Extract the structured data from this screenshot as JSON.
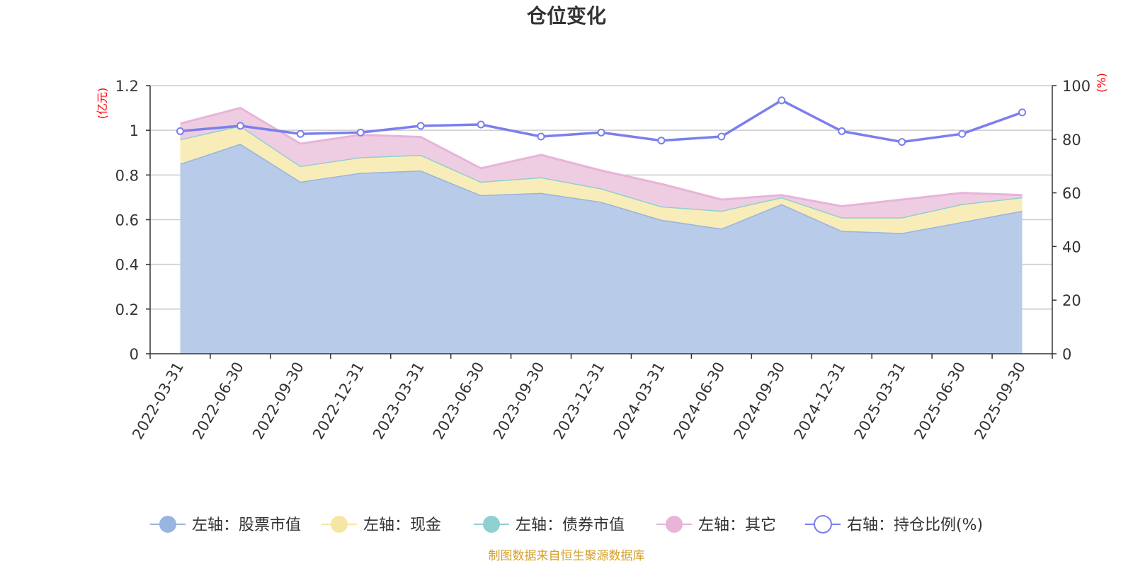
{
  "chart_data": {
    "type": "area",
    "title": "仓位变化",
    "left_axis_unit": "(亿元)",
    "right_axis_unit": "(%)",
    "left_ylim": [
      0,
      1.2
    ],
    "left_yticks": [
      "0",
      "0.2",
      "0.4",
      "0.6",
      "0.8",
      "1",
      "1.2"
    ],
    "right_ylim": [
      0,
      100
    ],
    "right_yticks": [
      "0",
      "20",
      "40",
      "60",
      "80",
      "100"
    ],
    "categories": [
      "2022-03-31",
      "2022-06-30",
      "2022-09-30",
      "2022-12-31",
      "2023-03-31",
      "2023-06-30",
      "2023-09-30",
      "2023-12-31",
      "2024-03-31",
      "2024-06-30",
      "2024-09-30",
      "2024-12-31",
      "2025-03-31",
      "2025-06-30",
      "2025-09-30"
    ],
    "series": [
      {
        "name": "左轴：股票市值",
        "axis": "left",
        "type": "area",
        "color": "#98b4e0",
        "fill": "#b8cbe9",
        "values": [
          0.85,
          0.94,
          0.77,
          0.81,
          0.82,
          0.71,
          0.72,
          0.68,
          0.6,
          0.56,
          0.67,
          0.55,
          0.54,
          0.59,
          0.64
        ]
      },
      {
        "name": "左轴：现金",
        "axis": "left",
        "type": "area",
        "color": "#f6e6a4",
        "fill": "#f8edb8",
        "values": [
          0.11,
          0.08,
          0.07,
          0.07,
          0.07,
          0.06,
          0.07,
          0.06,
          0.06,
          0.08,
          0.03,
          0.06,
          0.07,
          0.08,
          0.06
        ]
      },
      {
        "name": "左轴：债券市值",
        "axis": "left",
        "type": "area",
        "color": "#8fd0d0",
        "fill": "#a9dcdc",
        "values": [
          0,
          0,
          0,
          0,
          0,
          0,
          0,
          0,
          0,
          0,
          0,
          0,
          0,
          0,
          0
        ]
      },
      {
        "name": "左轴：其它",
        "axis": "left",
        "type": "area",
        "color": "#e8b4d8",
        "fill": "#eecde3",
        "values": [
          0.07,
          0.08,
          0.1,
          0.1,
          0.08,
          0.06,
          0.1,
          0.08,
          0.1,
          0.05,
          0.01,
          0.05,
          0.08,
          0.05,
          0.01
        ]
      },
      {
        "name": "右轴：持仓比例(%)",
        "axis": "right",
        "type": "line",
        "color": "#7b7fec",
        "values": [
          83,
          85,
          82,
          82.5,
          85,
          85.5,
          81,
          82.5,
          79.5,
          81,
          94.5,
          83,
          79,
          82,
          90
        ]
      }
    ],
    "source_note": "制图数据来自恒生聚源数据库",
    "colors": {
      "axis_unit": "#ff0000",
      "source_note": "#d4a02a",
      "grid": "#cccccc",
      "axis": "#333333"
    }
  }
}
